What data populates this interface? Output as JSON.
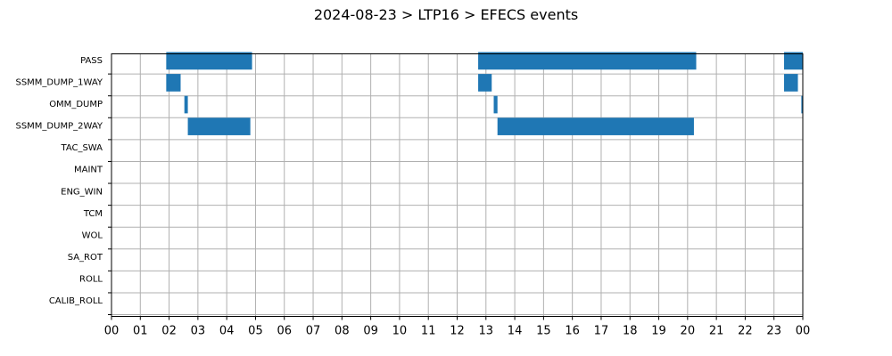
{
  "chart_data": {
    "type": "bar",
    "orientation": "horizontal-timeline",
    "title": "2024-08-23 > LTP16 > EFECS events",
    "xlabel": "",
    "ylabel": "",
    "xlim": [
      0,
      24
    ],
    "x_tick_labels": [
      "00",
      "01",
      "02",
      "03",
      "04",
      "05",
      "06",
      "07",
      "08",
      "09",
      "10",
      "11",
      "12",
      "13",
      "14",
      "15",
      "16",
      "17",
      "18",
      "19",
      "20",
      "21",
      "22",
      "23",
      "00"
    ],
    "categories": [
      "PASS",
      "SSMM_DUMP_1WAY",
      "OMM_DUMP",
      "SSMM_DUMP_2WAY",
      "TAC_SWA",
      "MAINT",
      "ENG_WIN",
      "TCM",
      "WOL",
      "SA_ROT",
      "ROLL",
      "CALIB_ROLL"
    ],
    "grid": true,
    "bar_color": "#1f77b4",
    "events": [
      {
        "category": "PASS",
        "start": 1.9,
        "end": 4.88
      },
      {
        "category": "PASS",
        "start": 12.73,
        "end": 20.3
      },
      {
        "category": "PASS",
        "start": 23.35,
        "end": 24.0
      },
      {
        "category": "SSMM_DUMP_1WAY",
        "start": 1.9,
        "end": 2.4
      },
      {
        "category": "SSMM_DUMP_1WAY",
        "start": 12.73,
        "end": 13.2
      },
      {
        "category": "SSMM_DUMP_1WAY",
        "start": 23.35,
        "end": 23.83
      },
      {
        "category": "OMM_DUMP",
        "start": 2.53,
        "end": 2.65
      },
      {
        "category": "OMM_DUMP",
        "start": 13.27,
        "end": 13.4
      },
      {
        "category": "OMM_DUMP",
        "start": 23.95,
        "end": 24.0
      },
      {
        "category": "SSMM_DUMP_2WAY",
        "start": 2.65,
        "end": 4.82
      },
      {
        "category": "SSMM_DUMP_2WAY",
        "start": 13.4,
        "end": 20.22
      }
    ]
  }
}
